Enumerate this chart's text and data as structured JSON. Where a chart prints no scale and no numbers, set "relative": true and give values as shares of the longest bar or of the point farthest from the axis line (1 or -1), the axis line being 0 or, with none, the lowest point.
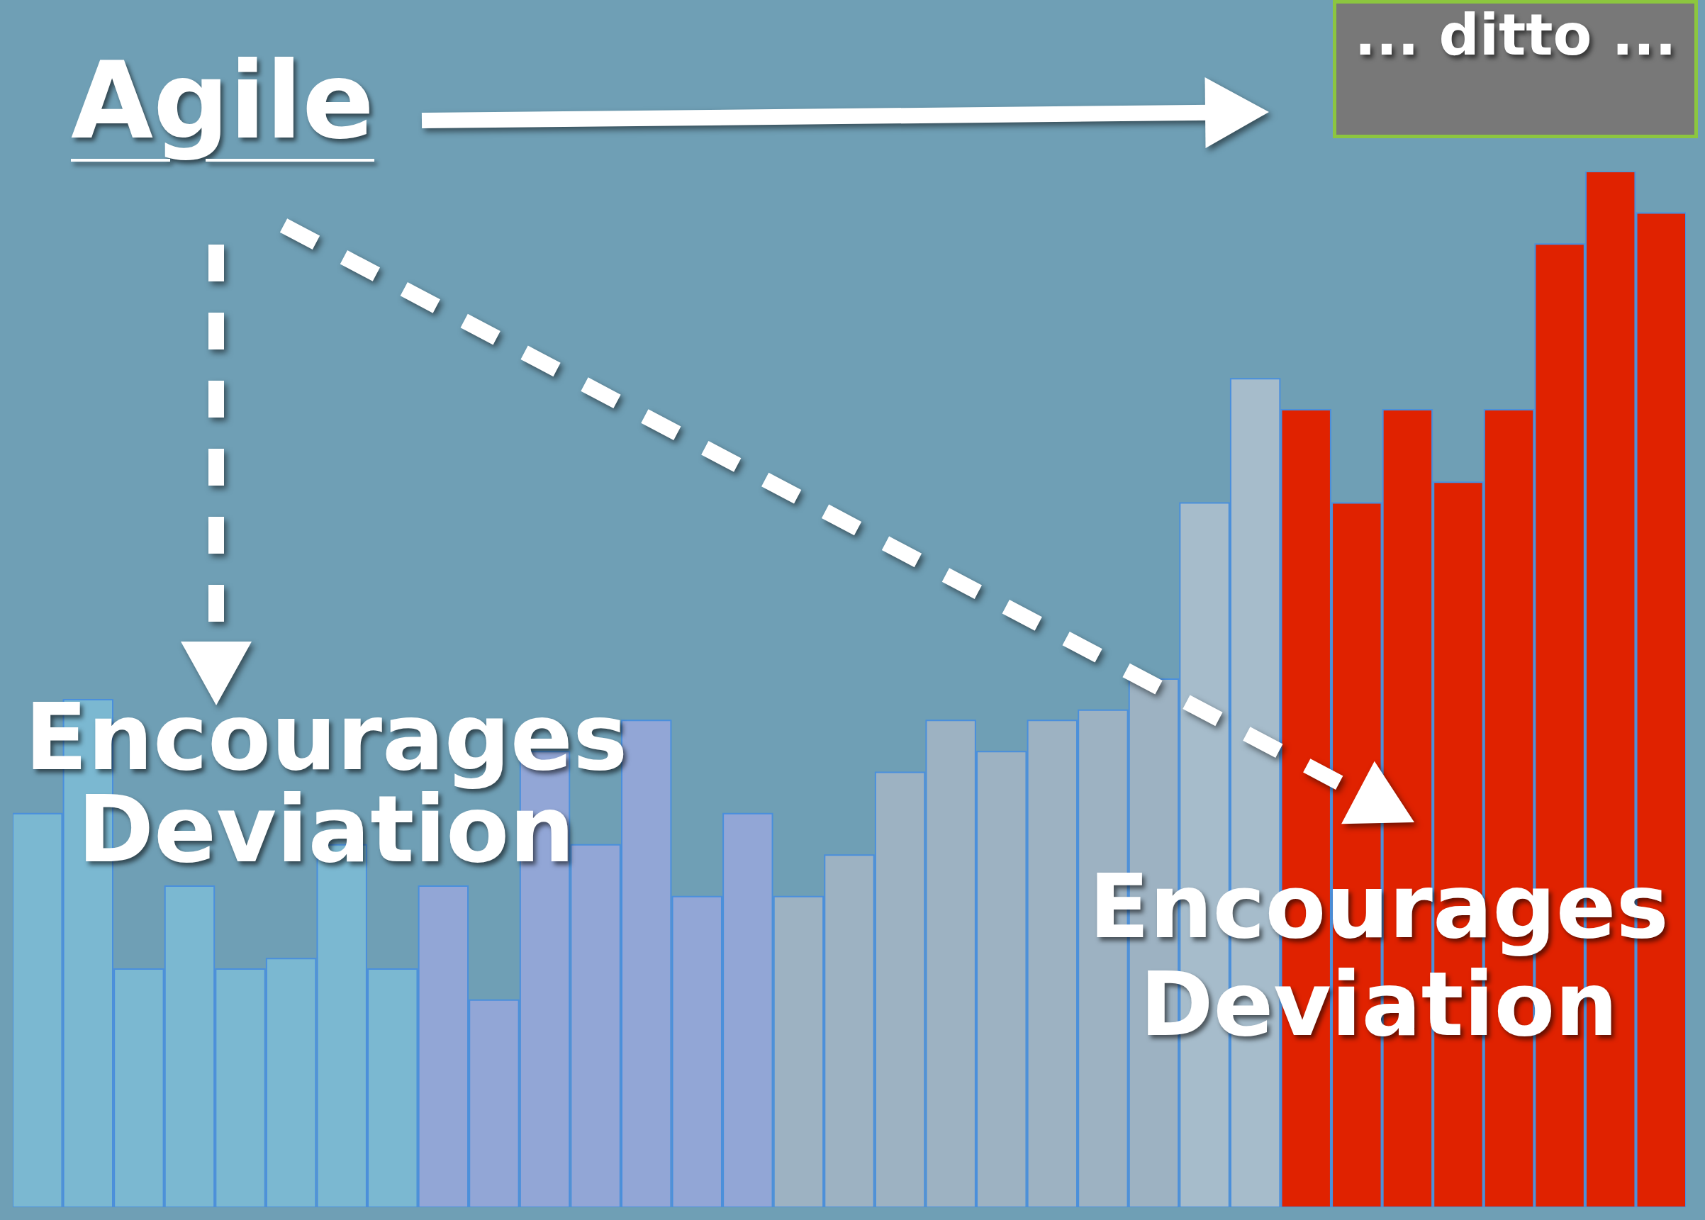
{
  "chart_data": {
    "type": "bar",
    "relative": true,
    "categories": [
      null,
      null,
      null,
      null,
      null,
      null,
      null,
      null,
      null,
      null,
      null,
      null,
      null,
      null,
      null,
      null,
      null,
      null,
      null,
      null,
      null,
      null,
      null,
      null,
      null,
      null,
      null,
      null,
      null,
      null,
      null,
      null,
      null
    ],
    "values": [
      0.38,
      0.49,
      0.23,
      0.31,
      0.23,
      0.24,
      0.35,
      0.23,
      0.31,
      0.2,
      0.44,
      0.35,
      0.47,
      0.3,
      0.38,
      0.3,
      0.34,
      0.42,
      0.47,
      0.44,
      0.47,
      0.48,
      0.51,
      0.68,
      0.8,
      0.77,
      0.68,
      0.77,
      0.7,
      0.77,
      0.93,
      1,
      0.96
    ],
    "colors": [
      "#7bb8d1",
      "#7bb8d1",
      "#7bb8d1",
      "#7bb8d1",
      "#7bb8d1",
      "#7bb8d1",
      "#7bb8d1",
      "#7bb8d1",
      "#92a6d6",
      "#92a6d6",
      "#92a6d6",
      "#92a6d6",
      "#92a6d6",
      "#92a6d6",
      "#92a6d6",
      "#9db2c2",
      "#9db2c2",
      "#9db2c2",
      "#9db2c2",
      "#9db2c2",
      "#9db2c2",
      "#9db2c2",
      "#9db2c2",
      "#a6bccb",
      "#a6bccb",
      "#e02200",
      "#e02200",
      "#e02200",
      "#e02200",
      "#e02200",
      "#e02200",
      "#e02200",
      "#e02200"
    ],
    "annotations": [
      "Agile",
      "... ditto ...",
      "Encourages Deviation",
      "Encourages Deviation"
    ]
  }
}
